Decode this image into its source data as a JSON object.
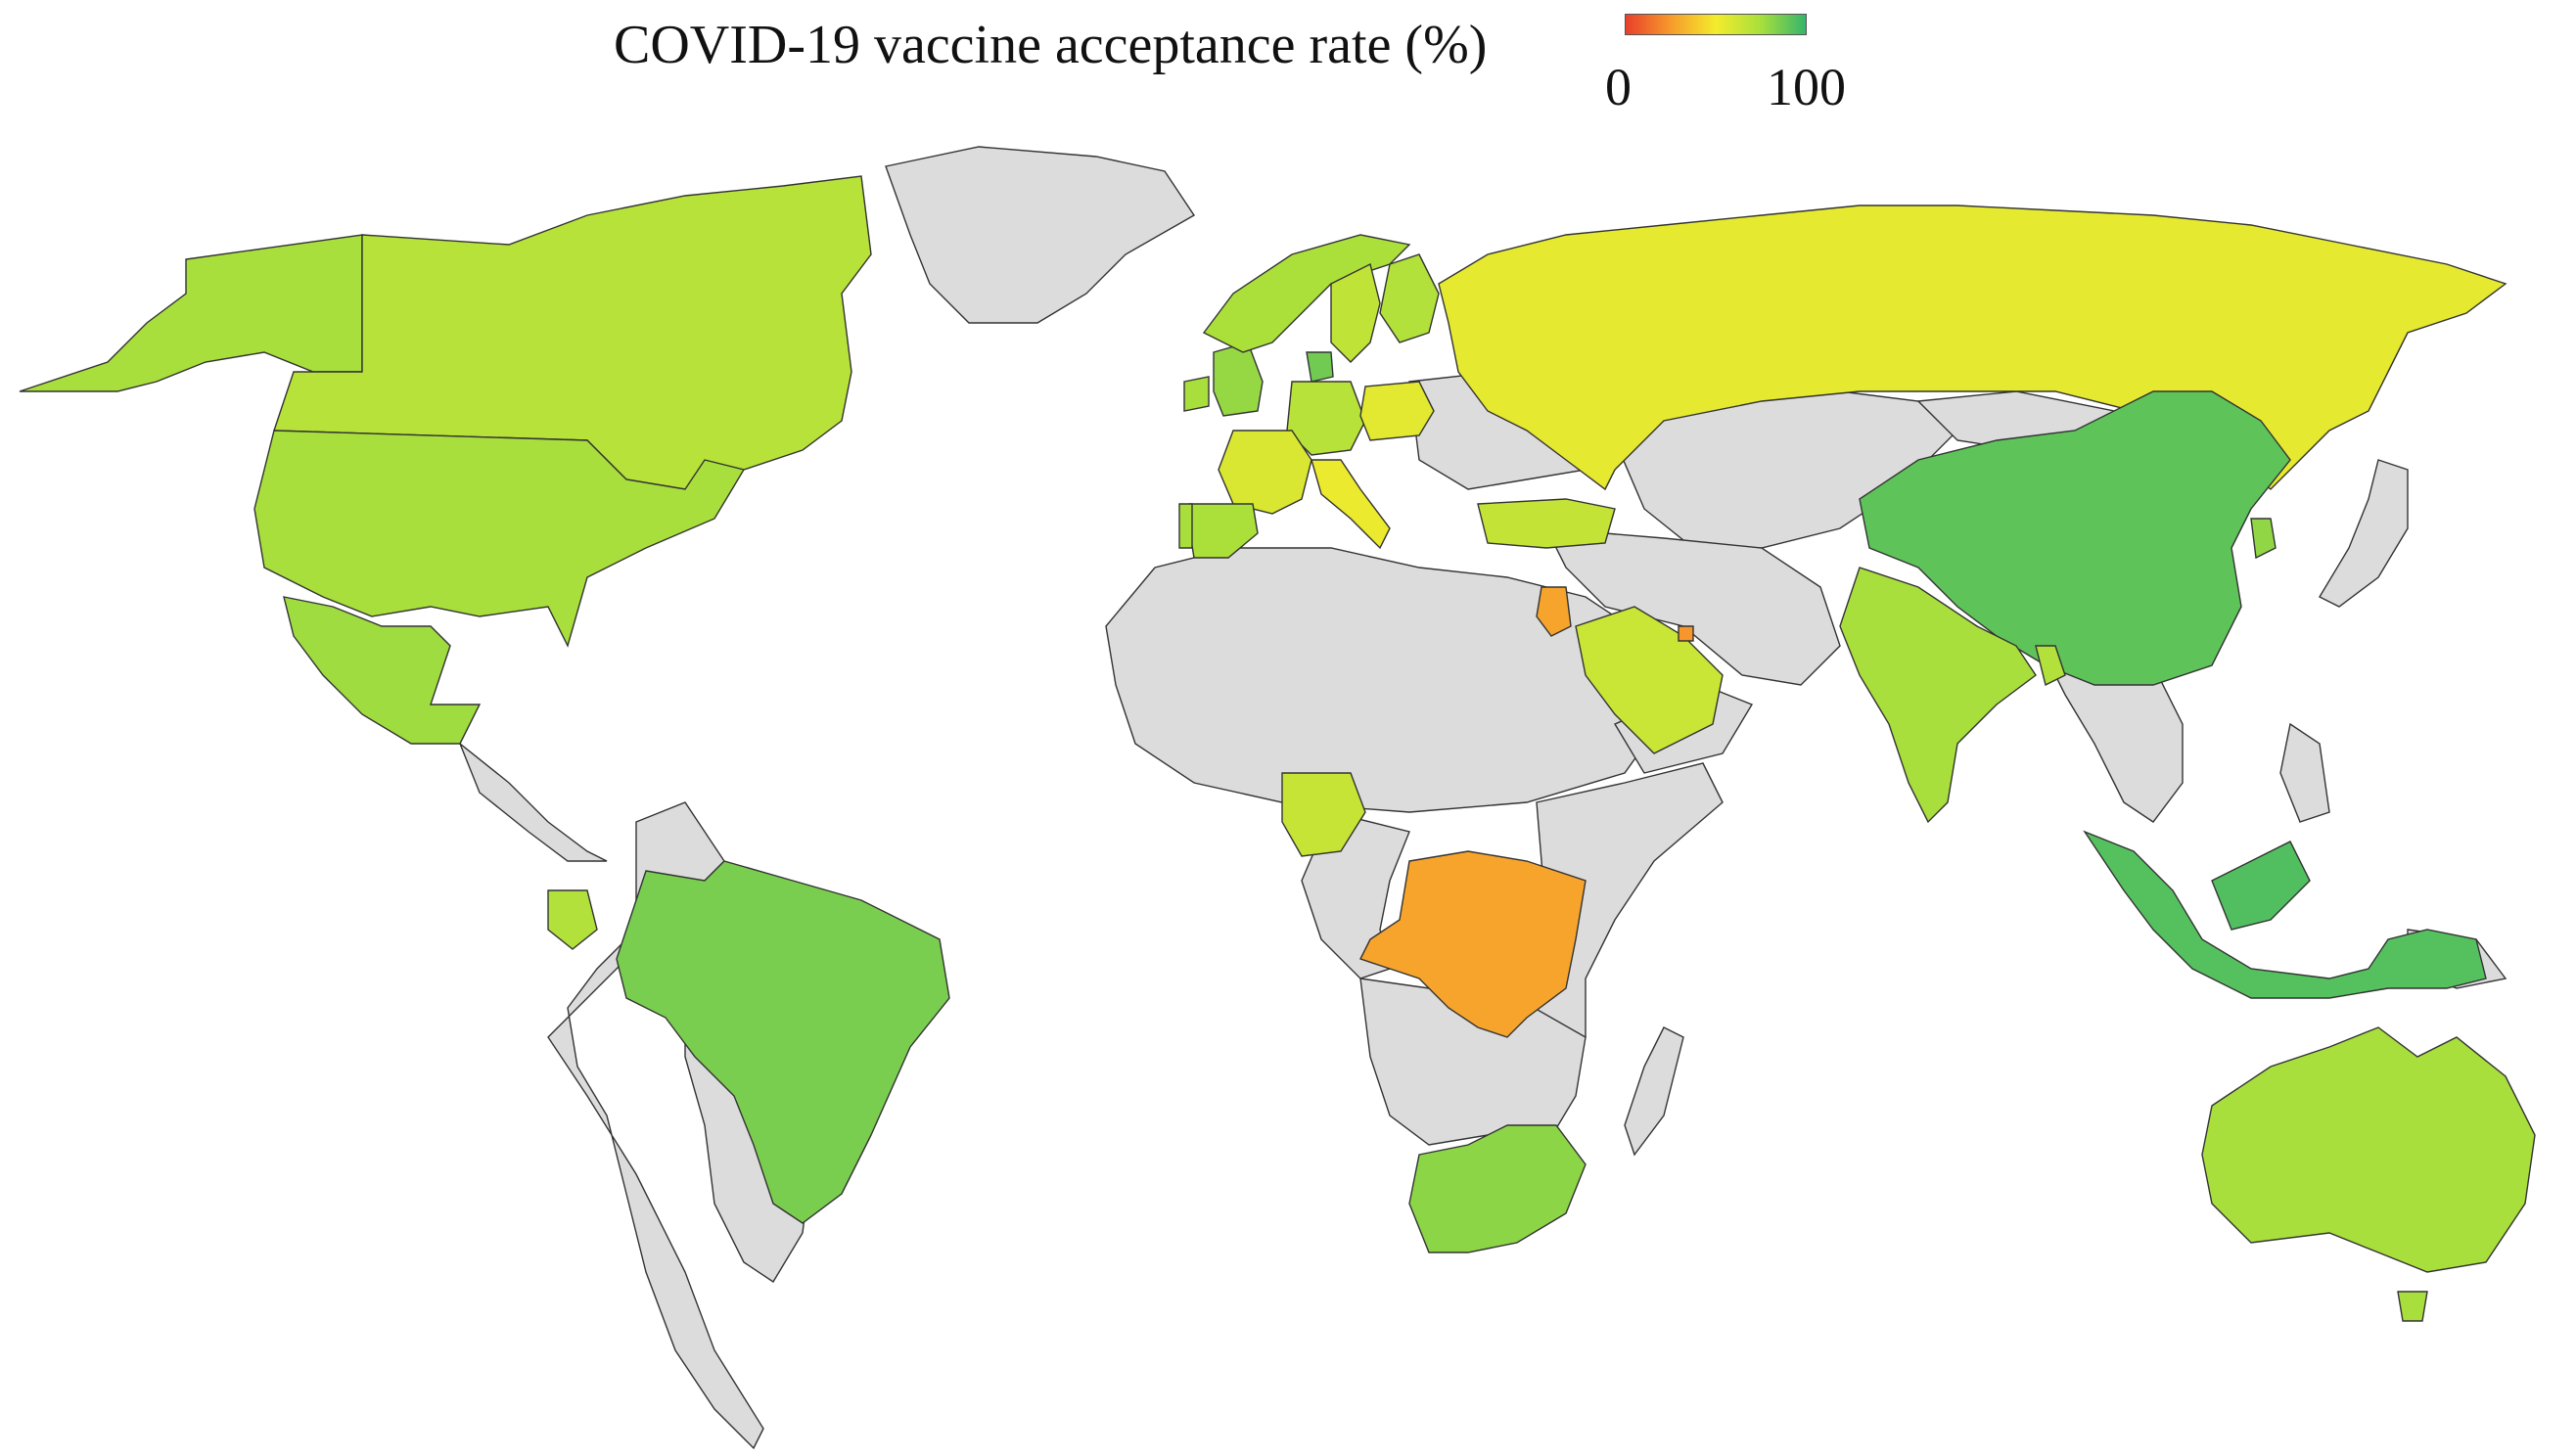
{
  "title": "COVID-19 vaccine acceptance rate (%)",
  "legend": {
    "min_label": "0",
    "max_label": "100",
    "low_color": "#e8402a",
    "mid_color": "#f4ec2c",
    "high_color": "#35b56b",
    "no_data_color": "#dcdcdc"
  },
  "countries": [
    {
      "name": "Alaska (USA)",
      "rate": 75
    },
    {
      "name": "Canada",
      "rate": 70
    },
    {
      "name": "United States",
      "rate": 75
    },
    {
      "name": "Mexico",
      "rate": 77
    },
    {
      "name": "Ecuador",
      "rate": 72
    },
    {
      "name": "Brazil",
      "rate": 85
    },
    {
      "name": "United Kingdom",
      "rate": 79
    },
    {
      "name": "Ireland",
      "rate": 75
    },
    {
      "name": "Denmark",
      "rate": 87
    },
    {
      "name": "Norway",
      "rate": 74
    },
    {
      "name": "Sweden",
      "rate": 67
    },
    {
      "name": "Finland",
      "rate": 72
    },
    {
      "name": "Germany",
      "rate": 70
    },
    {
      "name": "Poland",
      "rate": 56
    },
    {
      "name": "France",
      "rate": 59
    },
    {
      "name": "Spain",
      "rate": 74
    },
    {
      "name": "Portugal",
      "rate": 75
    },
    {
      "name": "Italy",
      "rate": 53
    },
    {
      "name": "Turkey",
      "rate": 66
    },
    {
      "name": "Russia",
      "rate": 55
    },
    {
      "name": "China",
      "rate": 91
    },
    {
      "name": "South Korea",
      "rate": 80
    },
    {
      "name": "India",
      "rate": 75
    },
    {
      "name": "Bangladesh",
      "rate": 72
    },
    {
      "name": "Saudi Arabia",
      "rate": 64
    },
    {
      "name": "Jordan",
      "rate": 28
    },
    {
      "name": "Kuwait",
      "rate": 24
    },
    {
      "name": "Nigeria",
      "rate": 65
    },
    {
      "name": "Democratic Republic of the Congo",
      "rate": 28
    },
    {
      "name": "South Africa",
      "rate": 81
    },
    {
      "name": "Indonesia",
      "rate": 93
    },
    {
      "name": "Malaysia",
      "rate": 94
    },
    {
      "name": "Australia",
      "rate": 75
    }
  ]
}
